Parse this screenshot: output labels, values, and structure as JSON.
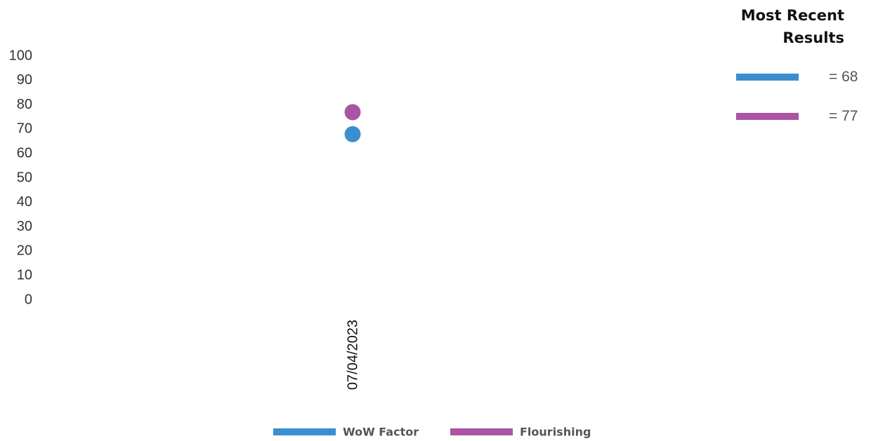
{
  "chart_data": {
    "type": "scatter",
    "categories": [
      "07/04/2023"
    ],
    "ylim": [
      0,
      100
    ],
    "yticks": [
      0,
      10,
      20,
      30,
      40,
      50,
      60,
      70,
      80,
      90,
      100
    ],
    "series": [
      {
        "name": "WoW Factor",
        "color": "#3a8fd0",
        "values": [
          68
        ]
      },
      {
        "name": "Flourishing",
        "color": "#aa55a3",
        "values": [
          77
        ]
      }
    ],
    "legend_position": "bottom",
    "grid": false
  },
  "recent_results": {
    "title_line1": "Most Recent",
    "title_line2": "Results",
    "items": [
      {
        "color": "#3a8fd0",
        "text": "= 68"
      },
      {
        "color": "#aa55a3",
        "text": "= 77"
      }
    ]
  }
}
